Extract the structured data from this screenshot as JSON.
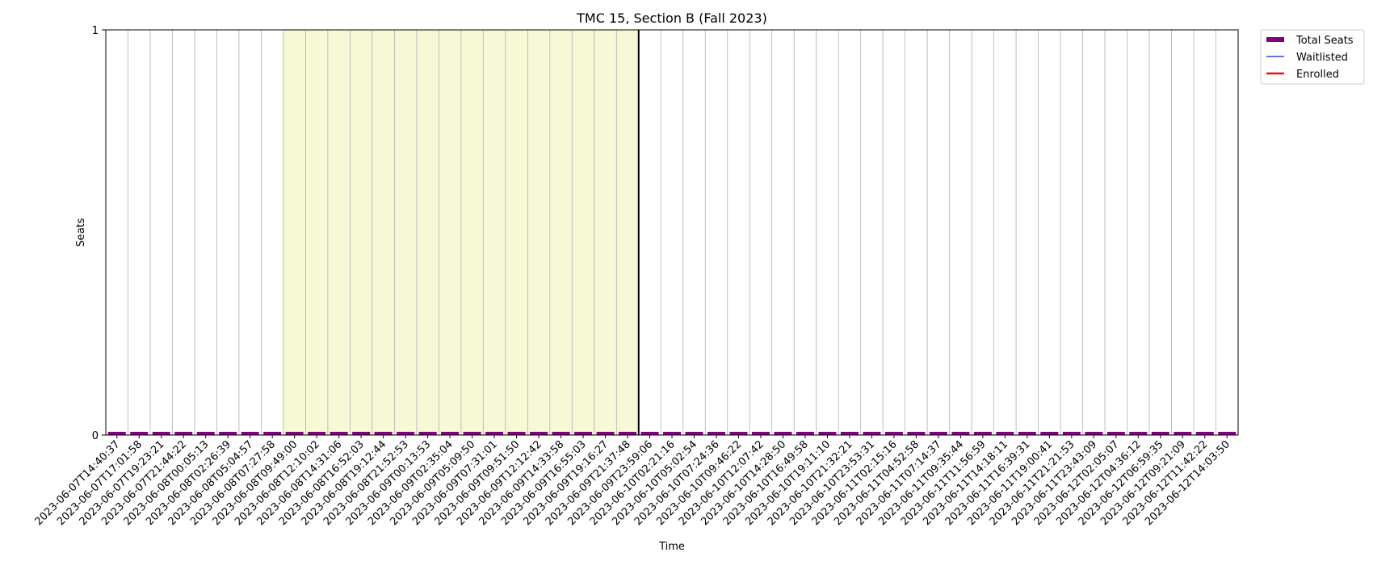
{
  "chart_data": {
    "type": "bar",
    "title": "TMC 15, Section B (Fall 2023)",
    "xlabel": "Time",
    "ylabel": "Seats",
    "ylim": [
      0,
      1
    ],
    "yticks": [
      "0",
      "1"
    ],
    "grid": "vertical",
    "legend_position": "top-right outside",
    "categories": [
      "2023-06-07T14:40:37",
      "2023-06-07T17:01:58",
      "2023-06-07T19:23:21",
      "2023-06-07T21:44:22",
      "2023-06-08T00:05:13",
      "2023-06-08T02:26:39",
      "2023-06-08T05:04:57",
      "2023-06-08T07:27:58",
      "2023-06-08T09:49:00",
      "2023-06-08T12:10:02",
      "2023-06-08T14:31:06",
      "2023-06-08T16:52:03",
      "2023-06-08T19:12:44",
      "2023-06-08T21:52:53",
      "2023-06-09T00:13:53",
      "2023-06-09T02:35:04",
      "2023-06-09T05:09:50",
      "2023-06-09T07:31:01",
      "2023-06-09T09:51:50",
      "2023-06-09T12:12:42",
      "2023-06-09T14:33:58",
      "2023-06-09T16:55:03",
      "2023-06-09T19:16:27",
      "2023-06-09T21:37:48",
      "2023-06-09T23:59:06",
      "2023-06-10T02:21:16",
      "2023-06-10T05:02:54",
      "2023-06-10T07:24:36",
      "2023-06-10T09:46:22",
      "2023-06-10T12:07:42",
      "2023-06-10T14:28:50",
      "2023-06-10T16:49:58",
      "2023-06-10T19:11:10",
      "2023-06-10T21:32:21",
      "2023-06-10T23:53:31",
      "2023-06-11T02:15:16",
      "2023-06-11T04:52:58",
      "2023-06-11T07:14:37",
      "2023-06-11T09:35:44",
      "2023-06-11T11:56:59",
      "2023-06-11T14:18:11",
      "2023-06-11T16:39:31",
      "2023-06-11T19:00:41",
      "2023-06-11T21:21:53",
      "2023-06-11T23:43:09",
      "2023-06-12T02:05:07",
      "2023-06-12T04:36:12",
      "2023-06-12T06:59:35",
      "2023-06-12T09:21:09",
      "2023-06-12T11:42:22",
      "2023-06-12T14:03:50"
    ],
    "series": [
      {
        "name": "Total Seats",
        "color": "#800080",
        "values": [
          0,
          0,
          0,
          0,
          0,
          0,
          0,
          0,
          0,
          0,
          0,
          0,
          0,
          0,
          0,
          0,
          0,
          0,
          0,
          0,
          0,
          0,
          0,
          0,
          0,
          0,
          0,
          0,
          0,
          0,
          0,
          0,
          0,
          0,
          0,
          0,
          0,
          0,
          0,
          0,
          0,
          0,
          0,
          0,
          0,
          0,
          0,
          0,
          0,
          0,
          0
        ]
      },
      {
        "name": "Waitlisted",
        "color": "#3344dd",
        "values": [
          0,
          0,
          0,
          0,
          0,
          0,
          0,
          0,
          0,
          0,
          0,
          0,
          0,
          0,
          0,
          0,
          0,
          0,
          0,
          0,
          0,
          0,
          0,
          0,
          0,
          0,
          0,
          0,
          0,
          0,
          0,
          0,
          0,
          0,
          0,
          0,
          0,
          0,
          0,
          0,
          0,
          0,
          0,
          0,
          0,
          0,
          0,
          0,
          0,
          0,
          0
        ]
      },
      {
        "name": "Enrolled",
        "color": "#ee1111",
        "values": [
          0,
          0,
          0,
          0,
          0,
          0,
          0,
          0,
          0,
          0,
          0,
          0,
          0,
          0,
          0,
          0,
          0,
          0,
          0,
          0,
          0,
          0,
          0,
          0,
          0,
          0,
          0,
          0,
          0,
          0,
          0,
          0,
          0,
          0,
          0,
          0,
          0,
          0,
          0,
          0,
          0,
          0,
          0,
          0,
          0,
          0,
          0,
          0,
          0,
          0,
          0
        ]
      }
    ],
    "highlight_span": {
      "start": "2023-06-08T07:27:58",
      "end": "2023-06-09T21:37:48",
      "color": "#f7f8d6",
      "edge_color": "#d6d84a"
    },
    "marker_line": {
      "at": "2023-06-09T21:37:48",
      "color": "#000000"
    }
  }
}
